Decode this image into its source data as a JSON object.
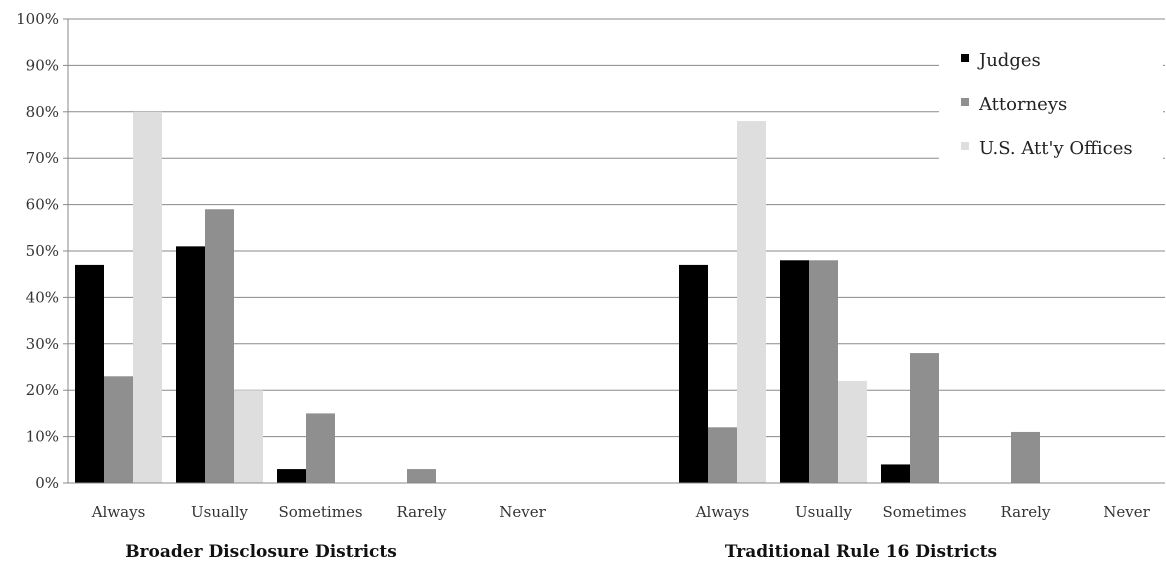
{
  "chart_data": {
    "type": "bar",
    "title": "",
    "xlabel": "",
    "ylabel": "",
    "ylim": [
      0,
      100
    ],
    "y_ticks": [
      0,
      10,
      20,
      30,
      40,
      50,
      60,
      70,
      80,
      90,
      100
    ],
    "y_tick_labels": [
      "0%",
      "10%",
      "20%",
      "30%",
      "40%",
      "50%",
      "60%",
      "70%",
      "80%",
      "90%",
      "100%"
    ],
    "grid": true,
    "legend_position": "top-right",
    "categories": [
      "Always",
      "Usually",
      "Sometimes",
      "Rarely",
      "Never"
    ],
    "series_meta": [
      {
        "name": "Judges",
        "color": "#000000"
      },
      {
        "name": "Attorneys",
        "color": "#8f8f8f"
      },
      {
        "name": "U.S. Att'y Offices",
        "color": "#dedede"
      }
    ],
    "groups": [
      {
        "label": "Broader Disclosure Districts",
        "series": [
          {
            "name": "Judges",
            "values": [
              47,
              51,
              3,
              0,
              0
            ]
          },
          {
            "name": "Attorneys",
            "values": [
              23,
              59,
              15,
              3,
              0
            ]
          },
          {
            "name": "U.S. Att'y Offices",
            "values": [
              80,
              20,
              0,
              0,
              0
            ]
          }
        ]
      },
      {
        "label": "Traditional Rule 16 Districts",
        "series": [
          {
            "name": "Judges",
            "values": [
              47,
              48,
              4,
              0,
              0
            ]
          },
          {
            "name": "Attorneys",
            "values": [
              12,
              48,
              28,
              11,
              0
            ]
          },
          {
            "name": "U.S. Att'y Offices",
            "values": [
              78,
              22,
              0,
              0,
              0
            ]
          }
        ]
      }
    ]
  }
}
